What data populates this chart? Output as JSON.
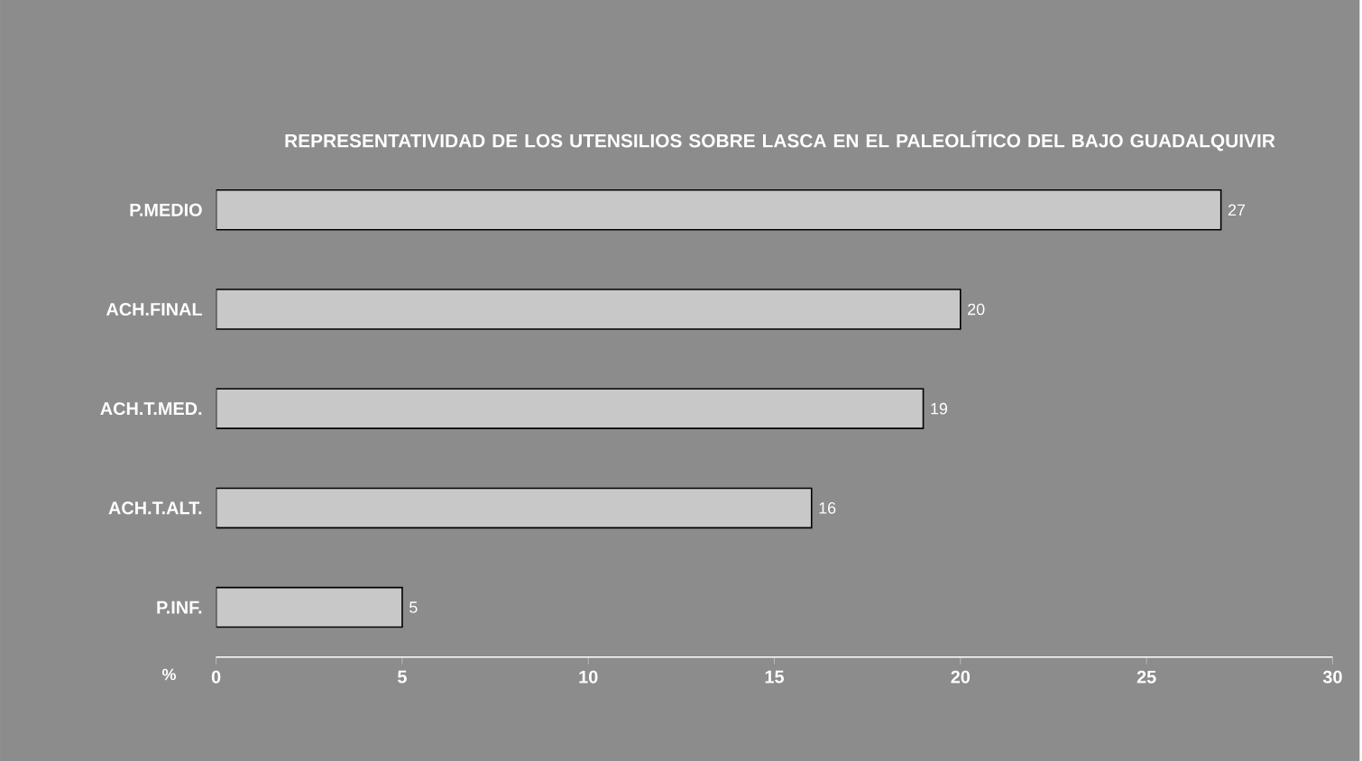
{
  "chart_data": {
    "type": "bar",
    "orientation": "horizontal",
    "title": "REPRESENTATIVIDAD DE LOS UTENSILIOS SOBRE LASCA EN EL PALEOLÍTICO DEL BAJO GUADALQUIVIR",
    "xlabel": "%",
    "categories": [
      "P.MEDIO",
      "ACH.FINAL",
      "ACH.T.MED.",
      "ACH.T.ALT.",
      "P.INF."
    ],
    "values": [
      27,
      20,
      19,
      16,
      5
    ],
    "color": "#c8c8c8",
    "xlim": [
      0,
      30
    ],
    "xticks": [
      0,
      5,
      10,
      15,
      20,
      25,
      30
    ],
    "data_labels": true
  }
}
